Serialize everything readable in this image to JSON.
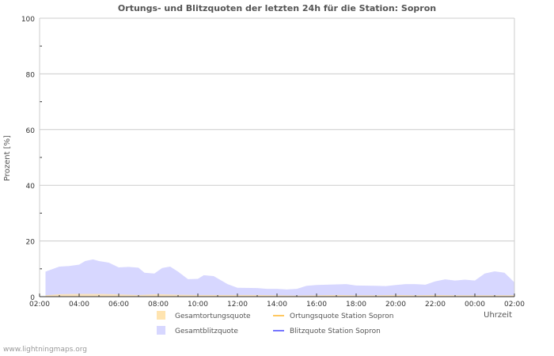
{
  "chart_data": {
    "type": "area",
    "title": "Ortungs- und Blitzquoten der letzten 24h für die Station: Sopron",
    "xlabel": "Uhrzeit",
    "ylabel": "Prozent   [%]",
    "ylim": [
      0,
      100
    ],
    "yticks": [
      0,
      20,
      40,
      60,
      80,
      100
    ],
    "xticks": [
      "02:00",
      "04:00",
      "06:00",
      "08:00",
      "10:00",
      "12:00",
      "14:00",
      "16:00",
      "18:00",
      "20:00",
      "22:00",
      "00:00",
      "02:00"
    ],
    "x_unit": "hours since 02:00",
    "xlim": [
      0,
      24
    ],
    "grid": true,
    "legend_position": "bottom",
    "series": [
      {
        "name": "Gesamtortungsquote",
        "kind": "area",
        "color": "#ffe4b0",
        "x": [
          0.3,
          1,
          2,
          3,
          4,
          5,
          6,
          7,
          8,
          9,
          10,
          11,
          12,
          13,
          14,
          15,
          16,
          17,
          18,
          19,
          20,
          21,
          22,
          23,
          24
        ],
        "values": [
          0.5,
          0.9,
          1.0,
          1.0,
          0.8,
          0.6,
          0.9,
          0.7,
          0.6,
          0.6,
          0.6,
          0.6,
          0.5,
          0.4,
          0.5,
          0.6,
          0.5,
          0.5,
          0.6,
          0.5,
          0.6,
          0.5,
          0.5,
          0.5,
          0.5
        ]
      },
      {
        "name": "Gesamtblitzquote",
        "kind": "area",
        "color": "#d7d7ff",
        "x": [
          0.3,
          0.5,
          1,
          1.5,
          2,
          2.3,
          2.7,
          3,
          3.5,
          4,
          4.5,
          5,
          5.3,
          5.8,
          6.2,
          6.6,
          7,
          7.5,
          8,
          8.3,
          8.8,
          9.5,
          10,
          11,
          11.5,
          12,
          12.5,
          13,
          13.5,
          14,
          15,
          15.5,
          16,
          17,
          17.5,
          18,
          18.5,
          19,
          19.5,
          20,
          20.5,
          21,
          21.5,
          22,
          22.5,
          23,
          23.5,
          24
        ],
        "values": [
          9,
          9.5,
          10.8,
          11,
          11.5,
          12.8,
          13.4,
          12.8,
          12.2,
          10.5,
          10.7,
          10.4,
          8.6,
          8.3,
          10.3,
          10.8,
          9,
          6.3,
          6.4,
          7.7,
          7.4,
          4.5,
          3.2,
          3.1,
          2.8,
          2.8,
          2.6,
          2.8,
          3.9,
          4.2,
          4.4,
          4.5,
          4.0,
          3.9,
          3.8,
          4.2,
          4.5,
          4.5,
          4.3,
          5.5,
          6.2,
          5.8,
          6.1,
          5.8,
          8.3,
          9.1,
          8.6,
          5.1
        ]
      },
      {
        "name": "Ortungsquote Station Sopron",
        "kind": "line",
        "color": "#ffc860",
        "values": []
      },
      {
        "name": "Blitzquote Station Sopron",
        "kind": "line",
        "color": "#7777ff",
        "values": []
      }
    ]
  },
  "footer": "www.lightningmaps.org"
}
